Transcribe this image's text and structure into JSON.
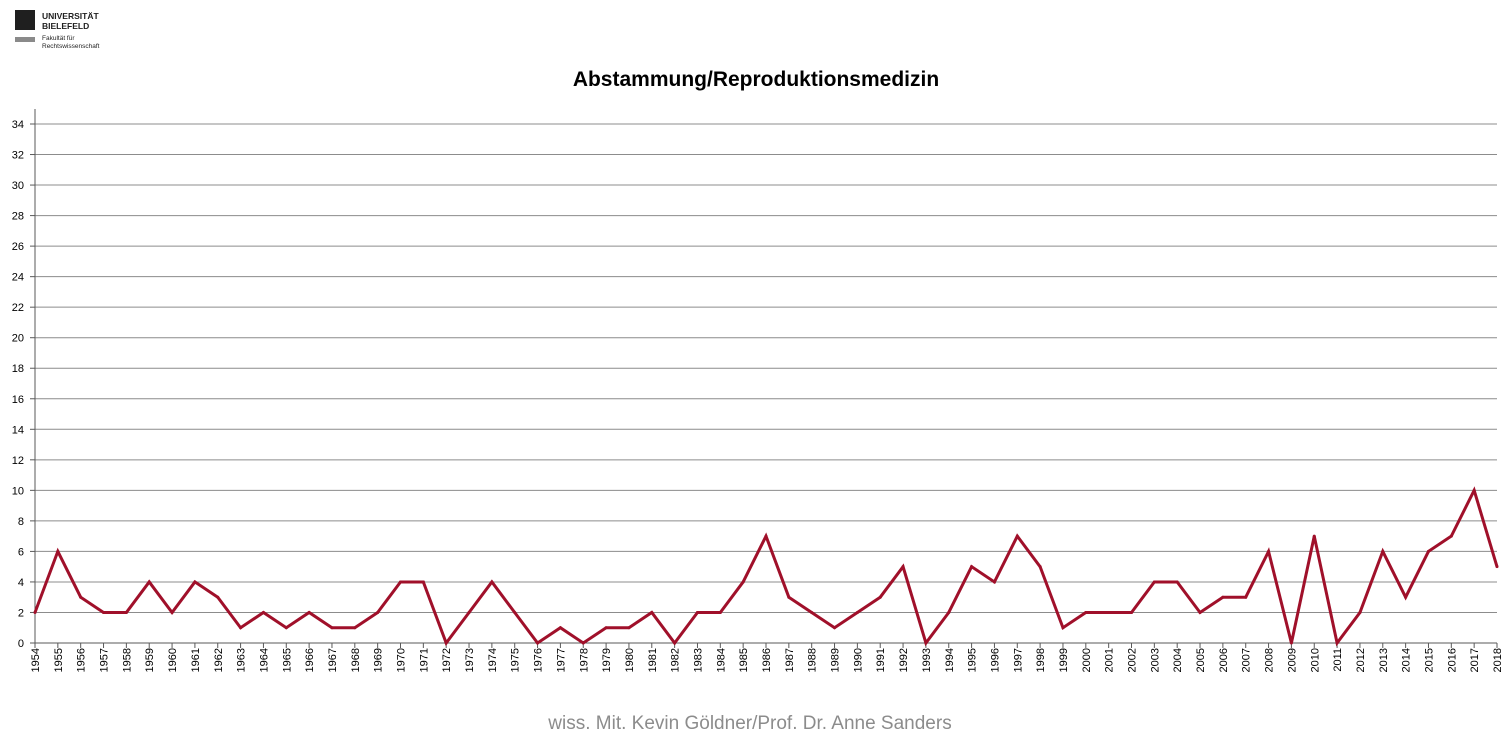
{
  "logo": {
    "line1": "UNIVERSITÄT",
    "line2": "BIELEFELD",
    "line3": "Fakultät für",
    "line4": "Rechtswissenschaft"
  },
  "footer": "wiss. Mit. Kevin Göldner/Prof.  Dr. Anne Sanders",
  "colors": {
    "line": "#a0102a",
    "grid": "#8c8c8c",
    "axis": "#595959"
  },
  "chart_data": {
    "type": "line",
    "title": "Abstammung/Reproduktionsmedizin",
    "xlabel": "",
    "ylabel": "",
    "ylim": [
      0,
      34
    ],
    "yticks": [
      0,
      2,
      4,
      6,
      8,
      10,
      12,
      14,
      16,
      18,
      20,
      22,
      24,
      26,
      28,
      30,
      32,
      34
    ],
    "grid": true,
    "legend": "none",
    "categories": [
      "1954",
      "1955",
      "1956",
      "1957",
      "1958",
      "1959",
      "1960",
      "1961",
      "1962",
      "1963",
      "1964",
      "1965",
      "1966",
      "1967",
      "1968",
      "1969",
      "1970",
      "1971",
      "1972",
      "1973",
      "1974",
      "1975",
      "1976",
      "1977",
      "1978",
      "1979",
      "1980",
      "1981",
      "1982",
      "1983",
      "1984",
      "1985",
      "1986",
      "1987",
      "1988",
      "1989",
      "1990",
      "1991",
      "1992",
      "1993",
      "1994",
      "1995",
      "1996",
      "1997",
      "1998",
      "1999",
      "2000",
      "2001",
      "2002",
      "2003",
      "2004",
      "2005",
      "2006",
      "2007",
      "2008",
      "2009",
      "2010",
      "2011",
      "2012",
      "2013",
      "2014",
      "2015",
      "2016",
      "2017",
      "2018"
    ],
    "series": [
      {
        "values": [
          2,
          6,
          3,
          2,
          2,
          4,
          2,
          4,
          3,
          1,
          2,
          1,
          2,
          1,
          1,
          2,
          4,
          4,
          0,
          2,
          4,
          2,
          0,
          1,
          0,
          1,
          1,
          2,
          0,
          2,
          2,
          4,
          7,
          3,
          2,
          1,
          2,
          3,
          5,
          0,
          2,
          5,
          4,
          7,
          5,
          1,
          2,
          2,
          2,
          4,
          4,
          2,
          3,
          3,
          6,
          0,
          7,
          0,
          2,
          6,
          3,
          6,
          7,
          10,
          5
        ]
      }
    ]
  }
}
